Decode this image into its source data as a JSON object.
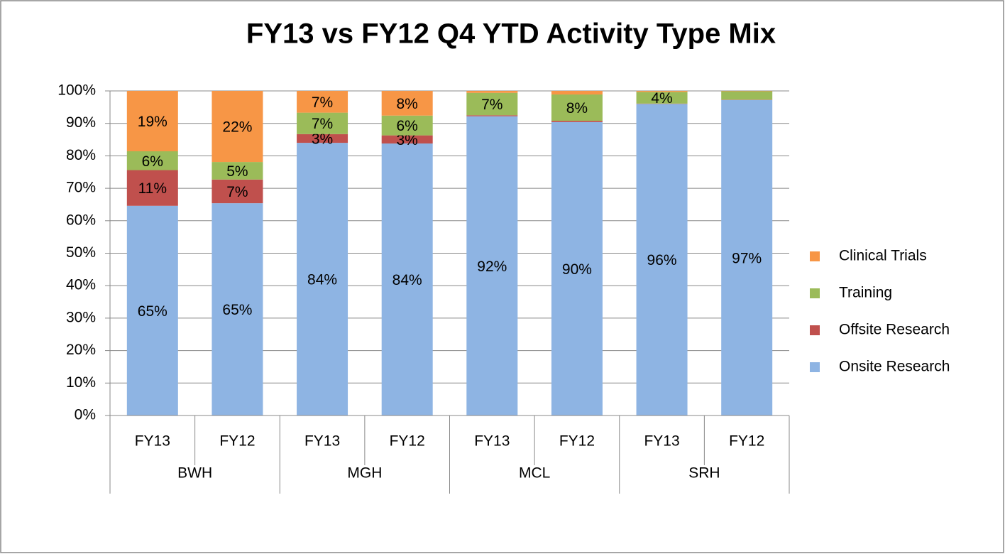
{
  "chart_data": {
    "type": "stacked_bar",
    "title": "FY13 vs FY12 Q4 YTD Activity Type Mix",
    "categories": [
      "FY13",
      "FY12",
      "FY13",
      "FY12",
      "FY13",
      "FY12",
      "FY13",
      "FY12"
    ],
    "groups": [
      "BWH",
      "MGH",
      "MCL",
      "SRH"
    ],
    "series": [
      {
        "name": "Onsite Research",
        "color": "#8eb4e3",
        "values": [
          64.6,
          65.4,
          84.0,
          83.8,
          92.2,
          90.4,
          96.0,
          97.2
        ],
        "value_labels": [
          "65%",
          "65%",
          "84%",
          "84%",
          "92%",
          "90%",
          "96%",
          "97%"
        ]
      },
      {
        "name": "Offsite Research",
        "color": "#c0504d",
        "values": [
          11.0,
          7.3,
          2.7,
          2.5,
          0.3,
          0.4,
          0.1,
          0.1
        ],
        "value_labels": [
          "11%",
          "7%",
          "3%",
          "3%",
          null,
          null,
          null,
          null
        ]
      },
      {
        "name": "Training",
        "color": "#9bbb59",
        "values": [
          5.8,
          5.4,
          6.6,
          6.1,
          6.9,
          8.1,
          3.6,
          2.6
        ],
        "value_labels": [
          "6%",
          "5%",
          "7%",
          "6%",
          "7%",
          "8%",
          "4%",
          null
        ]
      },
      {
        "name": "Clinical Trials",
        "color": "#f79646",
        "values": [
          18.6,
          21.9,
          6.7,
          7.6,
          0.6,
          1.1,
          0.3,
          0.1
        ],
        "value_labels": [
          "19%",
          "22%",
          "7%",
          "8%",
          null,
          null,
          null,
          null
        ]
      }
    ],
    "ylim": [
      0,
      100
    ],
    "yticks": [
      {
        "value": 0,
        "label": "0%"
      },
      {
        "value": 10,
        "label": "10%"
      },
      {
        "value": 20,
        "label": "20%"
      },
      {
        "value": 30,
        "label": "30%"
      },
      {
        "value": 40,
        "label": "40%"
      },
      {
        "value": 50,
        "label": "50%"
      },
      {
        "value": 60,
        "label": "60%"
      },
      {
        "value": 70,
        "label": "70%"
      },
      {
        "value": 80,
        "label": "80%"
      },
      {
        "value": 90,
        "label": "90%"
      },
      {
        "value": 100,
        "label": "100%"
      }
    ],
    "grid": true,
    "legend": "right"
  }
}
